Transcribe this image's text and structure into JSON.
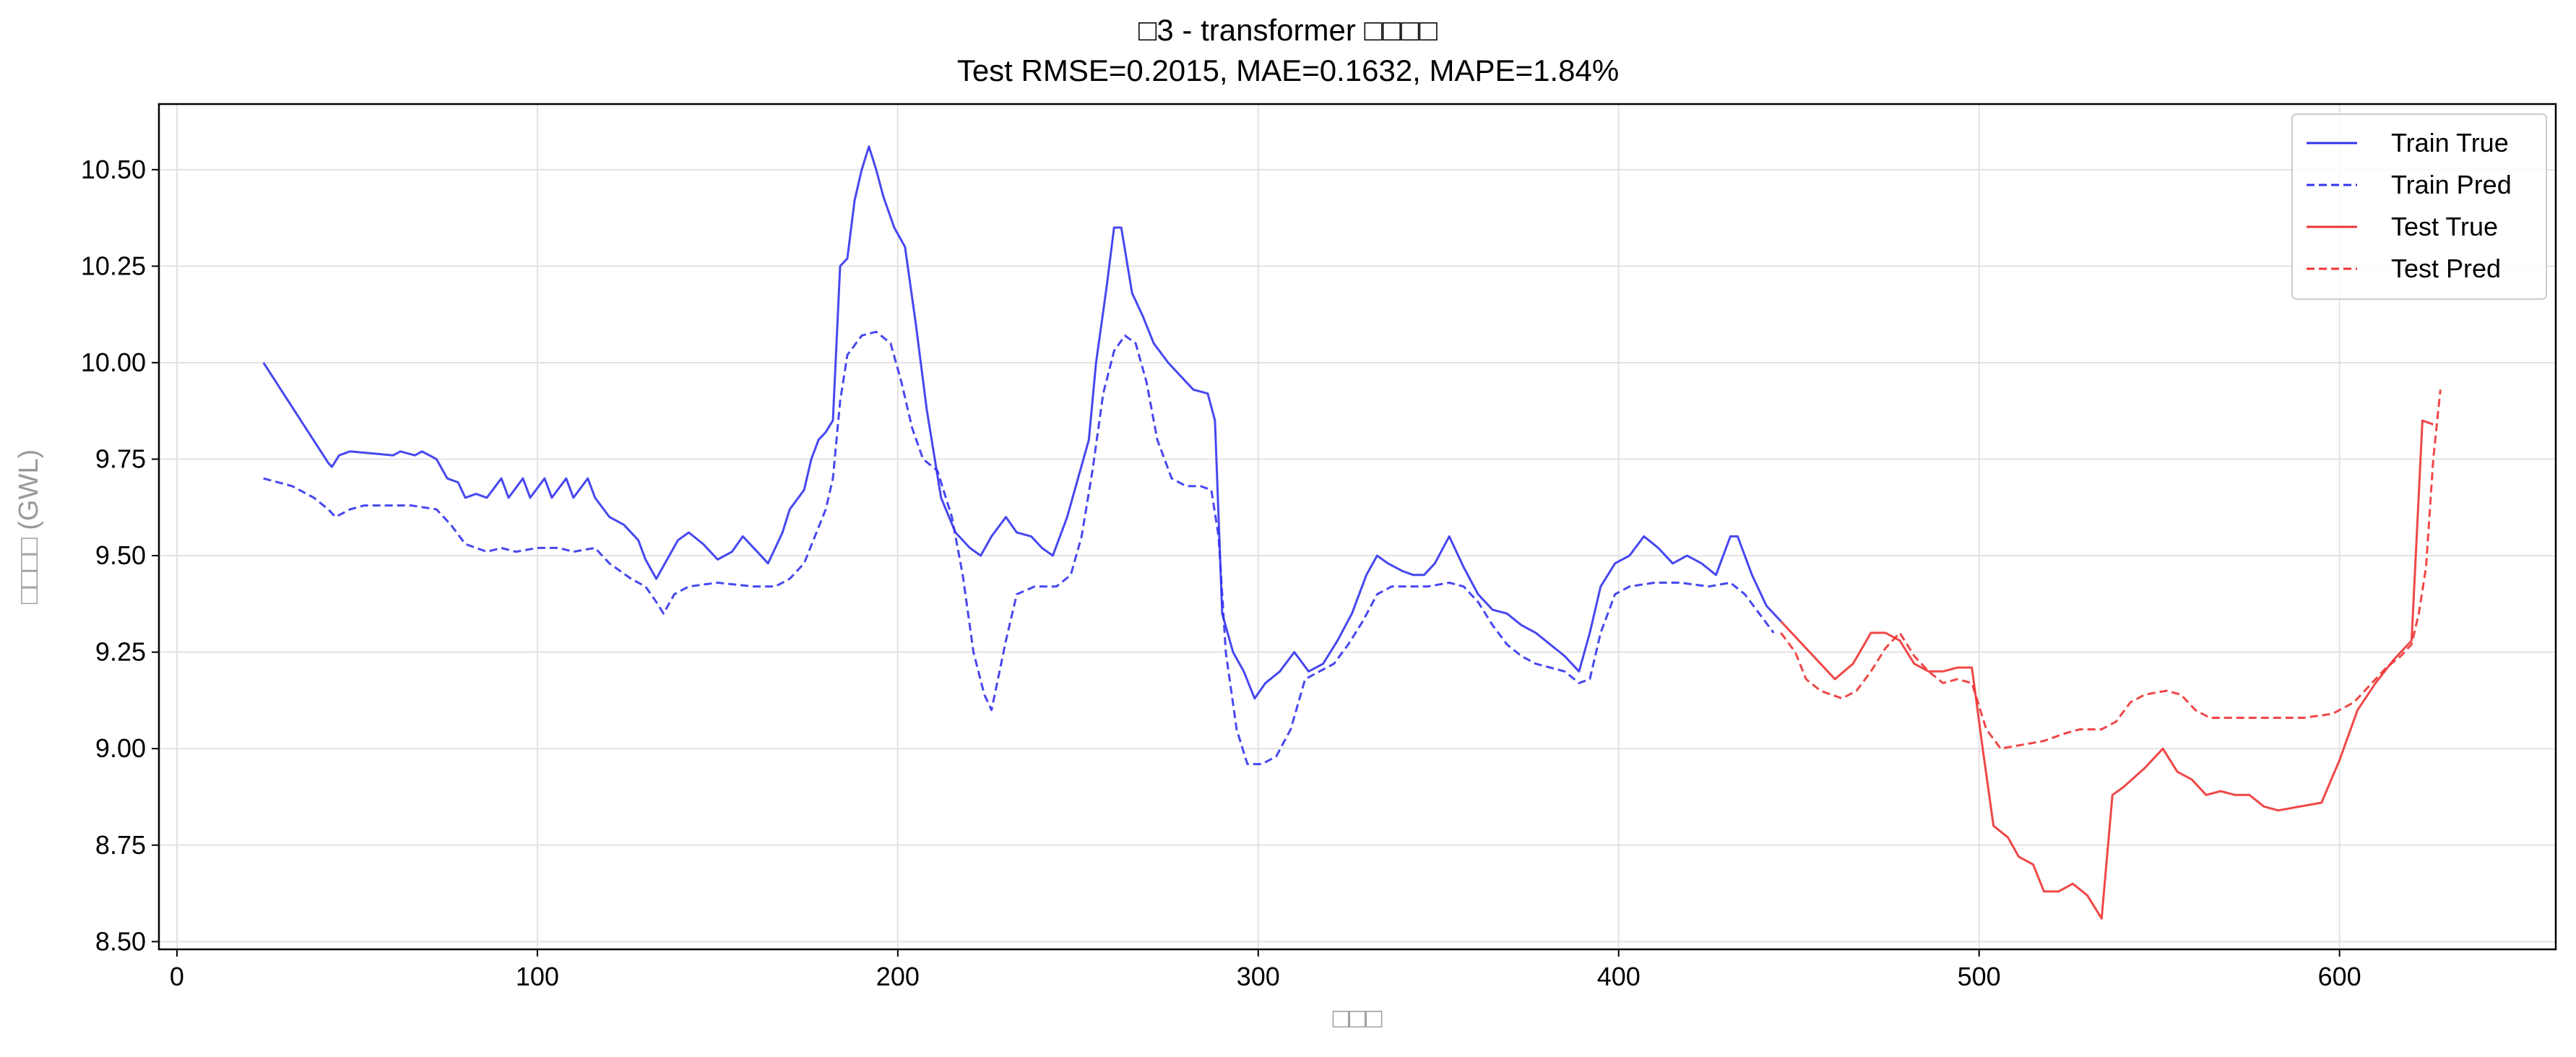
{
  "chart_data": {
    "type": "line",
    "title": "□3 - transformer □□□□",
    "subtitle": "Test RMSE=0.2015, MAE=0.1632, MAPE=1.84%",
    "xlabel": "□□□",
    "ylabel": "□□□□ (GWL)",
    "xlim": [
      -5,
      660
    ],
    "ylim": [
      8.48,
      10.67
    ],
    "xticks": [
      0,
      100,
      200,
      300,
      400,
      500,
      600
    ],
    "yticks": [
      8.5,
      8.75,
      9.0,
      9.25,
      9.5,
      9.75,
      10.0,
      10.25,
      10.5
    ],
    "grid": true,
    "legend_position": "top-right",
    "series": [
      {
        "name": "Train True",
        "color": "#3333ee",
        "style": "solid",
        "points": [
          [
            24,
            10.0
          ],
          [
            42,
            9.74
          ],
          [
            43,
            9.73
          ],
          [
            45,
            9.76
          ],
          [
            48,
            9.77
          ],
          [
            60,
            9.76
          ],
          [
            62,
            9.77
          ],
          [
            66,
            9.76
          ],
          [
            68,
            9.77
          ],
          [
            72,
            9.75
          ],
          [
            75,
            9.7
          ],
          [
            78,
            9.69
          ],
          [
            80,
            9.65
          ],
          [
            83,
            9.66
          ],
          [
            86,
            9.65
          ],
          [
            90,
            9.7
          ],
          [
            92,
            9.65
          ],
          [
            96,
            9.7
          ],
          [
            98,
            9.65
          ],
          [
            102,
            9.7
          ],
          [
            104,
            9.65
          ],
          [
            108,
            9.7
          ],
          [
            110,
            9.65
          ],
          [
            114,
            9.7
          ],
          [
            116,
            9.65
          ],
          [
            120,
            9.6
          ],
          [
            124,
            9.58
          ],
          [
            128,
            9.54
          ],
          [
            130,
            9.49
          ],
          [
            133,
            9.44
          ],
          [
            136,
            9.49
          ],
          [
            139,
            9.54
          ],
          [
            142,
            9.56
          ],
          [
            146,
            9.53
          ],
          [
            150,
            9.49
          ],
          [
            154,
            9.51
          ],
          [
            157,
            9.55
          ],
          [
            161,
            9.51
          ],
          [
            164,
            9.48
          ],
          [
            168,
            9.56
          ],
          [
            170,
            9.62
          ],
          [
            174,
            9.67
          ],
          [
            176,
            9.75
          ],
          [
            178,
            9.8
          ],
          [
            180,
            9.82
          ],
          [
            182,
            9.85
          ],
          [
            184,
            10.25
          ],
          [
            186,
            10.27
          ],
          [
            188,
            10.42
          ],
          [
            190,
            10.5
          ],
          [
            192,
            10.56
          ],
          [
            194,
            10.5
          ],
          [
            196,
            10.43
          ],
          [
            199,
            10.35
          ],
          [
            202,
            10.3
          ],
          [
            205,
            10.1
          ],
          [
            208,
            9.88
          ],
          [
            212,
            9.65
          ],
          [
            216,
            9.56
          ],
          [
            220,
            9.52
          ],
          [
            223,
            9.5
          ],
          [
            226,
            9.55
          ],
          [
            230,
            9.6
          ],
          [
            233,
            9.56
          ],
          [
            237,
            9.55
          ],
          [
            240,
            9.52
          ],
          [
            243,
            9.5
          ],
          [
            247,
            9.6
          ],
          [
            250,
            9.7
          ],
          [
            253,
            9.8
          ],
          [
            255,
            10.0
          ],
          [
            258,
            10.2
          ],
          [
            260,
            10.35
          ],
          [
            262,
            10.35
          ],
          [
            265,
            10.18
          ],
          [
            268,
            10.12
          ],
          [
            271,
            10.05
          ],
          [
            275,
            10.0
          ],
          [
            278,
            9.97
          ],
          [
            282,
            9.93
          ],
          [
            286,
            9.92
          ],
          [
            288,
            9.85
          ],
          [
            290,
            9.35
          ],
          [
            293,
            9.25
          ],
          [
            296,
            9.2
          ],
          [
            299,
            9.13
          ],
          [
            302,
            9.17
          ],
          [
            306,
            9.2
          ],
          [
            310,
            9.25
          ],
          [
            314,
            9.2
          ],
          [
            318,
            9.22
          ],
          [
            322,
            9.28
          ],
          [
            326,
            9.35
          ],
          [
            330,
            9.45
          ],
          [
            333,
            9.5
          ],
          [
            336,
            9.48
          ],
          [
            340,
            9.46
          ],
          [
            343,
            9.45
          ],
          [
            346,
            9.45
          ],
          [
            349,
            9.48
          ],
          [
            353,
            9.55
          ],
          [
            357,
            9.47
          ],
          [
            361,
            9.4
          ],
          [
            365,
            9.36
          ],
          [
            369,
            9.35
          ],
          [
            373,
            9.32
          ],
          [
            377,
            9.3
          ],
          [
            381,
            9.27
          ],
          [
            385,
            9.24
          ],
          [
            389,
            9.2
          ],
          [
            392,
            9.3
          ],
          [
            395,
            9.42
          ],
          [
            399,
            9.48
          ],
          [
            403,
            9.5
          ],
          [
            407,
            9.55
          ],
          [
            411,
            9.52
          ],
          [
            415,
            9.48
          ],
          [
            419,
            9.5
          ],
          [
            423,
            9.48
          ],
          [
            427,
            9.45
          ],
          [
            431,
            9.55
          ],
          [
            433,
            9.55
          ],
          [
            437,
            9.45
          ],
          [
            441,
            9.37
          ],
          [
            445,
            9.33
          ]
        ]
      },
      {
        "name": "Train Pred",
        "color": "#3333ee",
        "style": "dashed",
        "points": [
          [
            24,
            9.7
          ],
          [
            32,
            9.68
          ],
          [
            38,
            9.65
          ],
          [
            42,
            9.62
          ],
          [
            44,
            9.6
          ],
          [
            48,
            9.62
          ],
          [
            52,
            9.63
          ],
          [
            60,
            9.63
          ],
          [
            65,
            9.63
          ],
          [
            72,
            9.62
          ],
          [
            76,
            9.58
          ],
          [
            80,
            9.53
          ],
          [
            86,
            9.51
          ],
          [
            90,
            9.52
          ],
          [
            94,
            9.51
          ],
          [
            100,
            9.52
          ],
          [
            106,
            9.52
          ],
          [
            110,
            9.51
          ],
          [
            116,
            9.52
          ],
          [
            120,
            9.48
          ],
          [
            126,
            9.44
          ],
          [
            130,
            9.42
          ],
          [
            133,
            9.38
          ],
          [
            135,
            9.35
          ],
          [
            138,
            9.4
          ],
          [
            142,
            9.42
          ],
          [
            150,
            9.43
          ],
          [
            160,
            9.42
          ],
          [
            166,
            9.42
          ],
          [
            170,
            9.44
          ],
          [
            174,
            9.48
          ],
          [
            177,
            9.55
          ],
          [
            180,
            9.62
          ],
          [
            182,
            9.7
          ],
          [
            184,
            9.9
          ],
          [
            186,
            10.02
          ],
          [
            190,
            10.07
          ],
          [
            194,
            10.08
          ],
          [
            198,
            10.05
          ],
          [
            201,
            9.95
          ],
          [
            204,
            9.83
          ],
          [
            207,
            9.75
          ],
          [
            211,
            9.72
          ],
          [
            215,
            9.6
          ],
          [
            218,
            9.45
          ],
          [
            221,
            9.25
          ],
          [
            224,
            9.14
          ],
          [
            226,
            9.1
          ],
          [
            230,
            9.28
          ],
          [
            233,
            9.4
          ],
          [
            238,
            9.42
          ],
          [
            244,
            9.42
          ],
          [
            248,
            9.45
          ],
          [
            251,
            9.55
          ],
          [
            254,
            9.72
          ],
          [
            257,
            9.92
          ],
          [
            260,
            10.03
          ],
          [
            263,
            10.07
          ],
          [
            266,
            10.05
          ],
          [
            269,
            9.95
          ],
          [
            272,
            9.8
          ],
          [
            276,
            9.7
          ],
          [
            280,
            9.68
          ],
          [
            284,
            9.68
          ],
          [
            287,
            9.67
          ],
          [
            289,
            9.55
          ],
          [
            291,
            9.25
          ],
          [
            294,
            9.05
          ],
          [
            297,
            8.96
          ],
          [
            301,
            8.96
          ],
          [
            305,
            8.98
          ],
          [
            309,
            9.05
          ],
          [
            313,
            9.18
          ],
          [
            317,
            9.2
          ],
          [
            321,
            9.22
          ],
          [
            325,
            9.27
          ],
          [
            329,
            9.33
          ],
          [
            333,
            9.4
          ],
          [
            337,
            9.42
          ],
          [
            341,
            9.42
          ],
          [
            347,
            9.42
          ],
          [
            353,
            9.43
          ],
          [
            357,
            9.42
          ],
          [
            361,
            9.38
          ],
          [
            365,
            9.32
          ],
          [
            369,
            9.27
          ],
          [
            373,
            9.24
          ],
          [
            377,
            9.22
          ],
          [
            381,
            9.21
          ],
          [
            385,
            9.2
          ],
          [
            389,
            9.17
          ],
          [
            392,
            9.18
          ],
          [
            395,
            9.3
          ],
          [
            399,
            9.4
          ],
          [
            403,
            9.42
          ],
          [
            410,
            9.43
          ],
          [
            417,
            9.43
          ],
          [
            425,
            9.42
          ],
          [
            431,
            9.43
          ],
          [
            435,
            9.4
          ],
          [
            439,
            9.35
          ],
          [
            443,
            9.3
          ]
        ]
      },
      {
        "name": "Test True",
        "color": "#ee3333",
        "style": "solid",
        "points": [
          [
            445,
            9.33
          ],
          [
            450,
            9.28
          ],
          [
            455,
            9.23
          ],
          [
            460,
            9.18
          ],
          [
            465,
            9.22
          ],
          [
            470,
            9.3
          ],
          [
            474,
            9.3
          ],
          [
            478,
            9.28
          ],
          [
            482,
            9.22
          ],
          [
            486,
            9.2
          ],
          [
            490,
            9.2
          ],
          [
            494,
            9.21
          ],
          [
            498,
            9.21
          ],
          [
            501,
            9.0
          ],
          [
            504,
            8.8
          ],
          [
            508,
            8.77
          ],
          [
            511,
            8.72
          ],
          [
            515,
            8.7
          ],
          [
            518,
            8.63
          ],
          [
            522,
            8.63
          ],
          [
            526,
            8.65
          ],
          [
            530,
            8.62
          ],
          [
            534,
            8.56
          ],
          [
            537,
            8.88
          ],
          [
            540,
            8.9
          ],
          [
            546,
            8.95
          ],
          [
            551,
            9.0
          ],
          [
            555,
            8.94
          ],
          [
            559,
            8.92
          ],
          [
            563,
            8.88
          ],
          [
            567,
            8.89
          ],
          [
            571,
            8.88
          ],
          [
            575,
            8.88
          ],
          [
            579,
            8.85
          ],
          [
            583,
            8.84
          ],
          [
            595,
            8.86
          ],
          [
            600,
            8.97
          ],
          [
            605,
            9.1
          ],
          [
            610,
            9.17
          ],
          [
            615,
            9.23
          ],
          [
            620,
            9.28
          ],
          [
            623,
            9.85
          ],
          [
            626,
            9.84
          ]
        ]
      },
      {
        "name": "Test Pred",
        "color": "#ee3333",
        "style": "dashed",
        "points": [
          [
            445,
            9.3
          ],
          [
            449,
            9.25
          ],
          [
            452,
            9.18
          ],
          [
            456,
            9.15
          ],
          [
            462,
            9.13
          ],
          [
            466,
            9.15
          ],
          [
            470,
            9.2
          ],
          [
            474,
            9.26
          ],
          [
            478,
            9.3
          ],
          [
            482,
            9.24
          ],
          [
            486,
            9.2
          ],
          [
            490,
            9.17
          ],
          [
            494,
            9.18
          ],
          [
            498,
            9.17
          ],
          [
            502,
            9.05
          ],
          [
            506,
            9.0
          ],
          [
            512,
            9.01
          ],
          [
            518,
            9.02
          ],
          [
            524,
            9.04
          ],
          [
            528,
            9.05
          ],
          [
            534,
            9.05
          ],
          [
            538,
            9.07
          ],
          [
            542,
            9.12
          ],
          [
            546,
            9.14
          ],
          [
            552,
            9.15
          ],
          [
            556,
            9.14
          ],
          [
            560,
            9.1
          ],
          [
            564,
            9.08
          ],
          [
            570,
            9.08
          ],
          [
            576,
            9.08
          ],
          [
            582,
            9.08
          ],
          [
            590,
            9.08
          ],
          [
            598,
            9.09
          ],
          [
            604,
            9.12
          ],
          [
            609,
            9.17
          ],
          [
            613,
            9.21
          ],
          [
            617,
            9.24
          ],
          [
            620,
            9.27
          ],
          [
            622,
            9.35
          ],
          [
            624,
            9.47
          ],
          [
            626,
            9.75
          ],
          [
            628,
            9.93
          ]
        ]
      }
    ]
  }
}
